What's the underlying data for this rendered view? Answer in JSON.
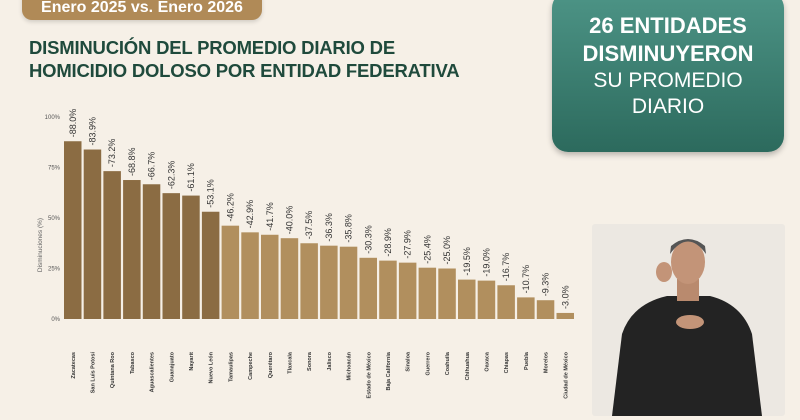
{
  "header": {
    "period": "Enero 2025 vs. Enero 2026"
  },
  "title": {
    "line1": "DISMINUCIÓN DEL PROMEDIO DIARIO DE",
    "line2": "HOMICIDIO DOLOSO POR ENTIDAD FEDERATIVA"
  },
  "panel": {
    "line1": "26 ENTIDADES",
    "line2": "DISMINUYERON",
    "line3": "SU PROMEDIO",
    "line4": "DIARIO"
  },
  "colors": {
    "title": "#1f4a3c",
    "bar_dark": "#8b6c43",
    "bar_light": "#b18f5e",
    "panel": "#3b8073",
    "pill": "#b08a57"
  },
  "chart_data": {
    "type": "bar",
    "ylabel": "Disminuciones (%)",
    "ylim": [
      0,
      100
    ],
    "yticks": [
      "0%",
      "25%",
      "50%",
      "75%",
      "100%"
    ],
    "categories": [
      "Zacatecas",
      "San Luis Potosí",
      "Quintana Roo",
      "Tabasco",
      "Aguascalientes",
      "Guanajuato",
      "Nayarit",
      "Nuevo León",
      "Tamaulipas",
      "Campeche",
      "Querétaro",
      "Tlaxcala",
      "Sonora",
      "Jalisco",
      "Michoacán",
      "Estado de México",
      "Baja California",
      "Sinaloa",
      "Guerrero",
      "Coahuila",
      "Chihuahua",
      "Oaxaca",
      "Chiapas",
      "Puebla",
      "Morelos",
      "Ciudad de México"
    ],
    "values": [
      88.0,
      83.9,
      73.2,
      68.8,
      66.7,
      62.3,
      61.1,
      53.1,
      46.2,
      42.9,
      41.7,
      40.0,
      37.5,
      36.3,
      35.8,
      30.3,
      28.9,
      27.9,
      25.4,
      25.0,
      19.5,
      19.0,
      16.7,
      10.7,
      9.3,
      3.0
    ],
    "labels": [
      "-88.0%",
      "-83.9%",
      "-73.2%",
      "-68.8%",
      "-66.7%",
      "-62.3%",
      "-61.1%",
      "-53.1%",
      "-46.2%",
      "-42.9%",
      "-41.7%",
      "-40.0%",
      "-37.5%",
      "-36.3%",
      "-35.8%",
      "-30.3%",
      "-28.9%",
      "-27.9%",
      "-25.4%",
      "-25.0%",
      "-19.5%",
      "-19.0%",
      "-16.7%",
      "-10.7%",
      "-9.3%",
      "-3.0%"
    ],
    "grid": false,
    "legend": "none"
  }
}
